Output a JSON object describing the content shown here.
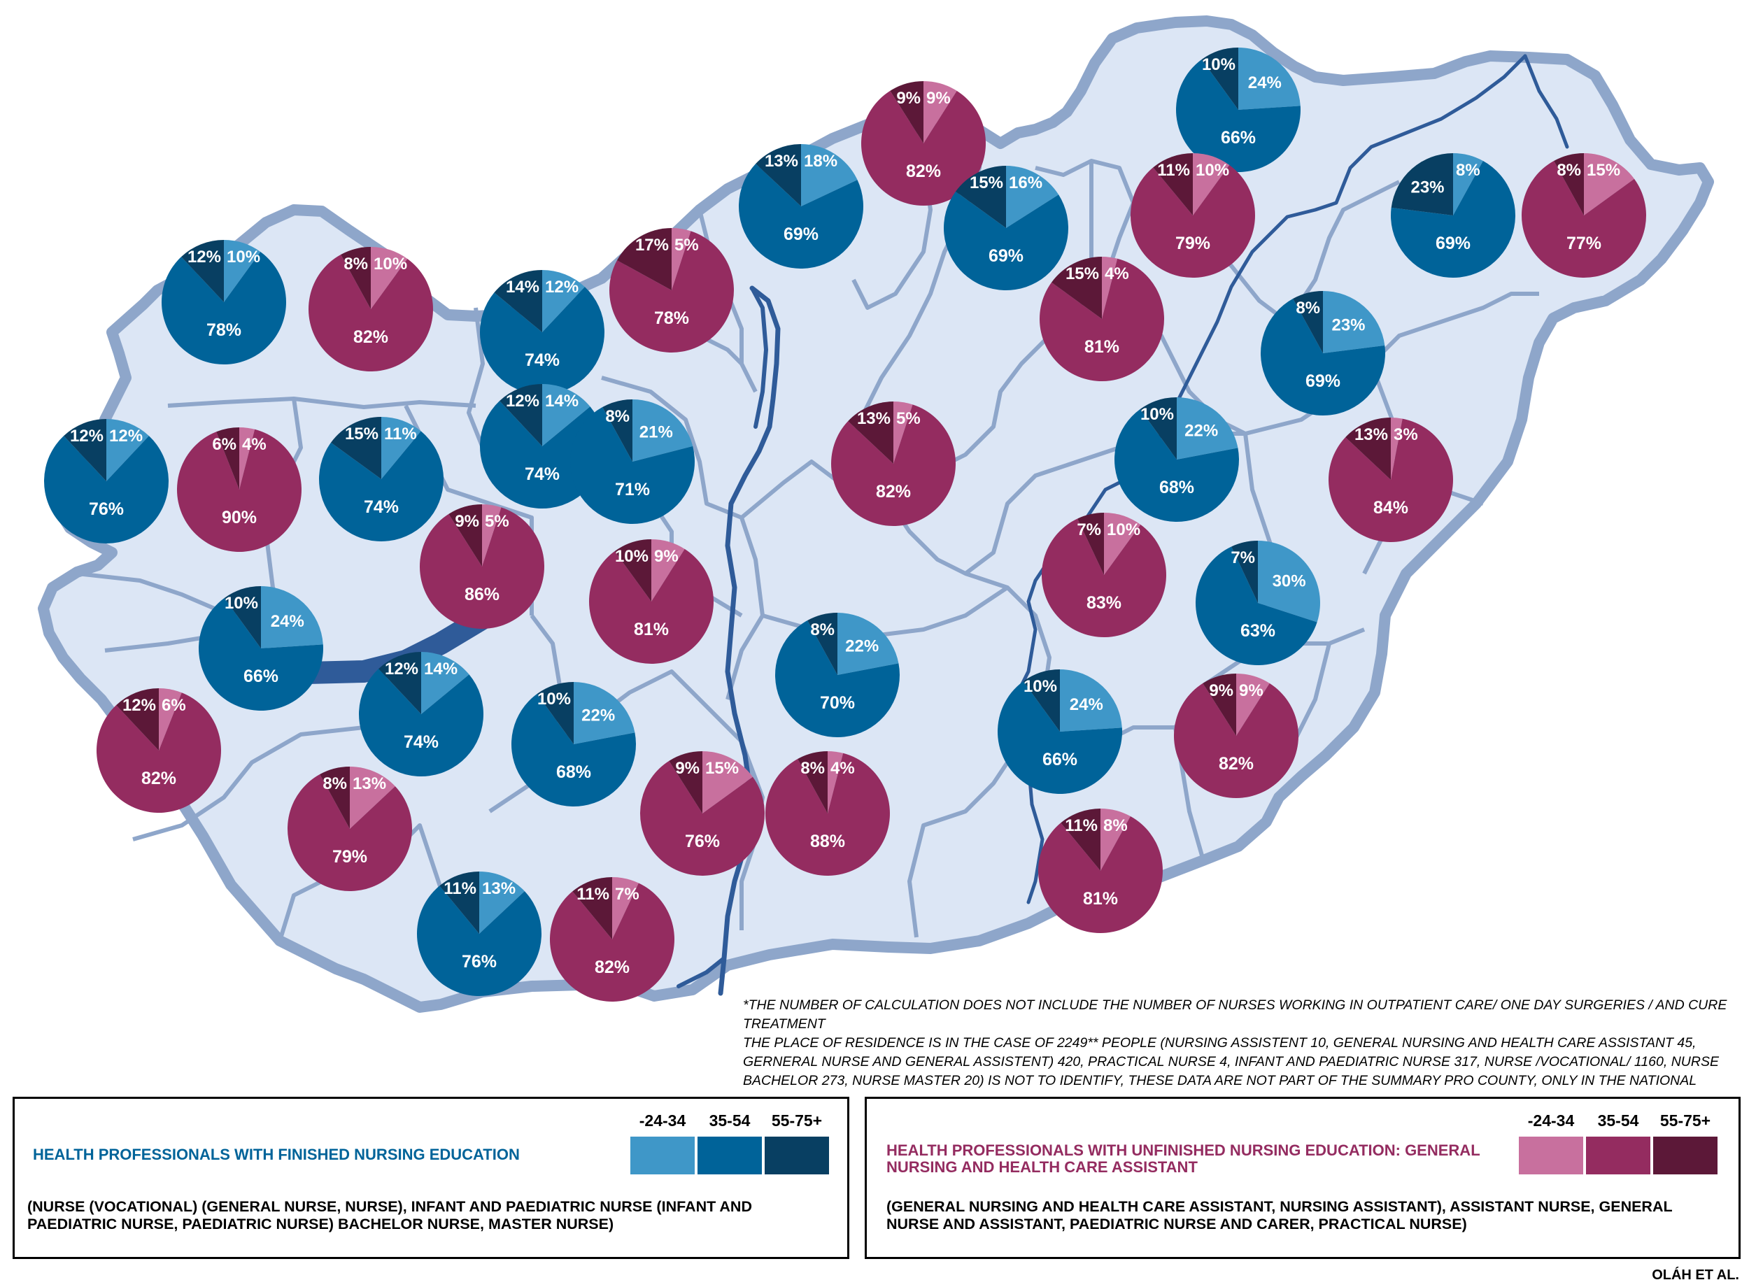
{
  "colors": {
    "finished": [
      "#3f97c8",
      "#006399",
      "#083f62"
    ],
    "unfinished": [
      "#c8709e",
      "#942c60",
      "#5c1838"
    ],
    "map_fill": "#dce6f5",
    "map_border": "#8ea6ca",
    "river": "#2f5b99"
  },
  "map": {
    "pies": [
      {
        "group": "finished",
        "values": [
          10,
          78,
          12
        ],
        "labels": [
          "10%",
          "78%",
          "12%"
        ]
      },
      {
        "group": "unfinished",
        "values": [
          10,
          82,
          8
        ],
        "labels": [
          "10%",
          "82%",
          "8%"
        ]
      },
      {
        "group": "finished",
        "values": [
          12,
          74,
          14
        ],
        "labels": [
          "12%",
          "74%",
          "14%"
        ]
      },
      {
        "group": "unfinished",
        "values": [
          5,
          78,
          17
        ],
        "labels": [
          "5%",
          "78%",
          "17%"
        ]
      },
      {
        "group": "finished",
        "values": [
          18,
          69,
          13
        ],
        "labels": [
          "18%",
          "69%",
          "13%"
        ]
      },
      {
        "group": "unfinished",
        "values": [
          9,
          82,
          9
        ],
        "labels": [
          "9%",
          "82%",
          "9%"
        ]
      },
      {
        "group": "finished",
        "values": [
          16,
          69,
          15
        ],
        "labels": [
          "16%",
          "69%",
          "15%"
        ]
      },
      {
        "group": "finished",
        "values": [
          24,
          66,
          10
        ],
        "labels": [
          "24%",
          "66%",
          "10%"
        ]
      },
      {
        "group": "unfinished",
        "values": [
          10,
          79,
          11
        ],
        "labels": [
          "10%",
          "79%",
          "11%"
        ]
      },
      {
        "group": "finished",
        "values": [
          8,
          69,
          23
        ],
        "labels": [
          "8%",
          "69%",
          "23%"
        ]
      },
      {
        "group": "unfinished",
        "values": [
          15,
          77,
          8
        ],
        "labels": [
          "15%",
          "77%",
          "8%"
        ]
      },
      {
        "group": "finished",
        "values": [
          12,
          76,
          12
        ],
        "labels": [
          "12%",
          "76%",
          "12%"
        ]
      },
      {
        "group": "unfinished",
        "values": [
          4,
          90,
          6
        ],
        "labels": [
          "4%",
          "90%",
          "6%"
        ]
      },
      {
        "group": "finished",
        "values": [
          11,
          74,
          15
        ],
        "labels": [
          "11%",
          "74%",
          "15%"
        ]
      },
      {
        "group": "finished",
        "values": [
          14,
          74,
          12
        ],
        "labels": [
          "14%",
          "74%",
          "12%"
        ]
      },
      {
        "group": "finished",
        "values": [
          21,
          71,
          8
        ],
        "labels": [
          "21%",
          "71%",
          "8%"
        ]
      },
      {
        "group": "unfinished",
        "values": [
          4,
          81,
          15
        ],
        "labels": [
          "4%",
          "81%",
          "15%"
        ]
      },
      {
        "group": "finished",
        "values": [
          23,
          69,
          8
        ],
        "labels": [
          "23%",
          "69%",
          "8%"
        ]
      },
      {
        "group": "unfinished",
        "values": [
          5,
          82,
          13
        ],
        "labels": [
          "5%",
          "82%",
          "13%"
        ]
      },
      {
        "group": "finished",
        "values": [
          22,
          68,
          10
        ],
        "labels": [
          "22%",
          "68%",
          "10%"
        ]
      },
      {
        "group": "unfinished",
        "values": [
          3,
          84,
          13
        ],
        "labels": [
          "3%",
          "84%",
          "13%"
        ]
      },
      {
        "group": "unfinished",
        "values": [
          5,
          86,
          9
        ],
        "labels": [
          "5%",
          "86%",
          "9%"
        ]
      },
      {
        "group": "unfinished",
        "values": [
          9,
          81,
          10
        ],
        "labels": [
          "9%",
          "81%",
          "10%"
        ]
      },
      {
        "group": "unfinished",
        "values": [
          10,
          83,
          7
        ],
        "labels": [
          "10%",
          "83%",
          "7%"
        ]
      },
      {
        "group": "finished",
        "values": [
          30,
          63,
          7
        ],
        "labels": [
          "30%",
          "63%",
          "7%"
        ]
      },
      {
        "group": "finished",
        "values": [
          24,
          66,
          10
        ],
        "labels": [
          "24%",
          "66%",
          "10%"
        ]
      },
      {
        "group": "finished",
        "values": [
          14,
          74,
          12
        ],
        "labels": [
          "14%",
          "74%",
          "12%"
        ]
      },
      {
        "group": "finished",
        "values": [
          22,
          70,
          8
        ],
        "labels": [
          "22%",
          "70%",
          "8%"
        ]
      },
      {
        "group": "unfinished",
        "values": [
          6,
          82,
          12
        ],
        "labels": [
          "6%",
          "82%",
          "12%"
        ]
      },
      {
        "group": "finished",
        "values": [
          22,
          68,
          10
        ],
        "labels": [
          "22%",
          "68%",
          "10%"
        ]
      },
      {
        "group": "finished",
        "values": [
          24,
          66,
          10
        ],
        "labels": [
          "24%",
          "66%",
          "10%"
        ]
      },
      {
        "group": "unfinished",
        "values": [
          9,
          82,
          9
        ],
        "labels": [
          "9%",
          "82%",
          "9%"
        ]
      },
      {
        "group": "unfinished",
        "values": [
          15,
          76,
          9
        ],
        "labels": [
          "15%",
          "76%",
          "9%"
        ]
      },
      {
        "group": "unfinished",
        "values": [
          4,
          88,
          8
        ],
        "labels": [
          "4%",
          "88%",
          "8%"
        ]
      },
      {
        "group": "unfinished",
        "values": [
          13,
          79,
          8
        ],
        "labels": [
          "13%",
          "79%",
          "8%"
        ]
      },
      {
        "group": "unfinished",
        "values": [
          8,
          81,
          11
        ],
        "labels": [
          "8%",
          "81%",
          "11%"
        ]
      },
      {
        "group": "finished",
        "values": [
          13,
          76,
          11
        ],
        "labels": [
          "13%",
          "76%",
          "11%"
        ]
      },
      {
        "group": "unfinished",
        "values": [
          7,
          82,
          11
        ],
        "labels": [
          "7%",
          "82%",
          "11%"
        ]
      }
    ]
  },
  "footnote": {
    "line1": "*The number of calculation does not include the number  of nurses working in outpatient care/  one day surgeries / and cure treatment",
    "line2": "The place of residence is in the case of 2249** people (Nursing assistent 10, General nursing and health care assistant 45, Gerneral nurse and general assistent) 420, Practical nurse 4, Infant and paediatric nurse 317, Nurse /vocational/ 1160, Nurse bachelor 273, Nurse master 20) is not to identify, these data are not part of the summary pro county, only in the national"
  },
  "legend": {
    "finished": {
      "title": "HEALTH PROFESSIONALS WITH FINISHED NURSING EDUCATION",
      "description": "(NURSE (VOCATIONAL) (GENERAL NURSE, NURSE), INFANT AND PAEDIATRIC NURSE (INFANT AND PAEDIATRIC NURSE, PAEDIATRIC NURSE) BACHELOR NURSE, MASTER NURSE)",
      "age_groups": [
        "-24-34",
        "35-54",
        "55-75+"
      ]
    },
    "unfinished": {
      "title": "HEALTH PROFESSIONALS WITH UNFINISHED NURSING EDUCATION: GENERAL NURSING AND HEALTH CARE ASSISTANT",
      "description": "(GENERAL NURSING AND HEALTH CARE ASSISTANT, NURSING ASSISTANT), ASSISTANT NURSE, GENERAL NURSE AND ASSISTANT, PAEDIATRIC NURSE AND CARER, PRACTICAL NURSE)",
      "age_groups": [
        "-24-34",
        "35-54",
        "55-75+"
      ]
    }
  },
  "author": "OLÁH ET AL."
}
